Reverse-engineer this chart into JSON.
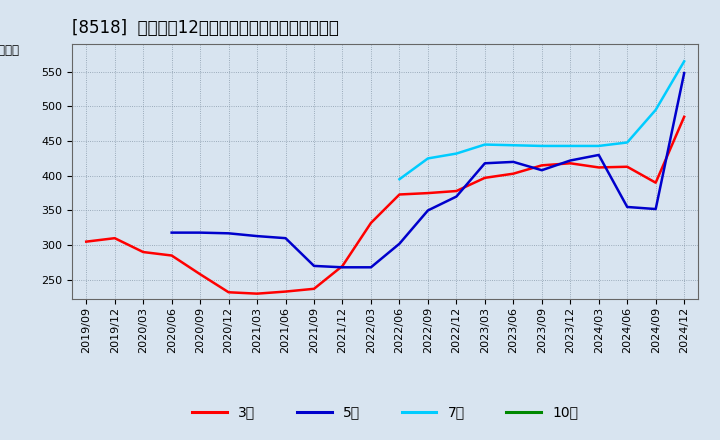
{
  "title": "[8518]  経常利益12か月移動合計の標準偏差の推移",
  "ylabel": "（百万円）",
  "background_color": "#d8e4f0",
  "plot_background": "#d8e4f0",
  "ylim": [
    222,
    590
  ],
  "yticks": [
    250,
    300,
    350,
    400,
    450,
    500,
    550
  ],
  "legend_labels": [
    "3年",
    "5年",
    "7年",
    "10年"
  ],
  "legend_colors": [
    "#ff0000",
    "#0000cc",
    "#00ccff",
    "#008800"
  ],
  "x_labels": [
    "2019/09",
    "2019/12",
    "2020/03",
    "2020/06",
    "2020/09",
    "2020/12",
    "2021/03",
    "2021/06",
    "2021/09",
    "2021/12",
    "2022/03",
    "2022/06",
    "2022/09",
    "2022/12",
    "2023/03",
    "2023/06",
    "2023/09",
    "2023/12",
    "2024/03",
    "2024/06",
    "2024/09",
    "2024/12"
  ],
  "series_3y_x": [
    0,
    1,
    2,
    3,
    4,
    5,
    6,
    7,
    8,
    9,
    10,
    11,
    12,
    13,
    14,
    15,
    16,
    17,
    18,
    19,
    20,
    21
  ],
  "series_3y_y": [
    305,
    310,
    290,
    285,
    258,
    232,
    230,
    233,
    237,
    270,
    332,
    373,
    375,
    378,
    397,
    403,
    415,
    418,
    412,
    413,
    390,
    485
  ],
  "series_5y_x": [
    3,
    4,
    5,
    6,
    7,
    8,
    9,
    10,
    11,
    12,
    13,
    14,
    15,
    16,
    17,
    18,
    19,
    20,
    21
  ],
  "series_5y_y": [
    318,
    318,
    317,
    313,
    310,
    270,
    268,
    268,
    302,
    350,
    370,
    418,
    420,
    408,
    422,
    430,
    355,
    352,
    548
  ],
  "series_7y_x": [
    11,
    12,
    13,
    14,
    15,
    16,
    17,
    18,
    19,
    20,
    21
  ],
  "series_7y_y": [
    395,
    425,
    432,
    445,
    444,
    443,
    443,
    443,
    448,
    495,
    565
  ],
  "line_width": 1.8,
  "title_fontsize": 12,
  "tick_fontsize": 8,
  "ylabel_fontsize": 8.5
}
